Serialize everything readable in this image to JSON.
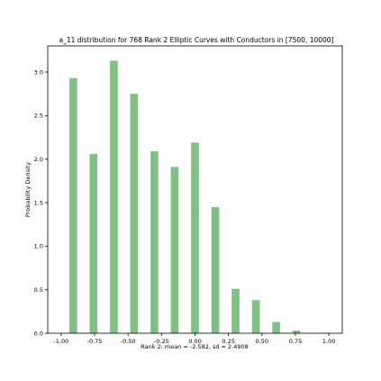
{
  "chart_data": {
    "type": "bar",
    "title": "a_11 distribution for 768 Rank 2 Elliptic Curves with Conductors in [7500, 10000]",
    "xlabel": "Rank 2: mean = -2.582, sd = 2.4908",
    "ylabel": "Probability Density",
    "xlim": [
      -1.1,
      1.1
    ],
    "ylim": [
      0,
      3.3
    ],
    "bar_width": 0.058,
    "bar_color": "#82bf82",
    "x": [
      -0.909,
      -0.758,
      -0.606,
      -0.455,
      -0.303,
      -0.152,
      0.0,
      0.152,
      0.303,
      0.455,
      0.606,
      0.758
    ],
    "values": [
      2.93,
      2.06,
      3.13,
      2.75,
      2.09,
      1.91,
      2.19,
      1.45,
      0.51,
      0.38,
      0.13,
      0.03
    ],
    "xticks": [
      -1.0,
      -0.75,
      -0.5,
      -0.25,
      0.0,
      0.25,
      0.5,
      0.75,
      1.0
    ],
    "xtick_labels": [
      "-1.00",
      "-0.75",
      "-0.50",
      "-0.25",
      "0.00",
      "0.25",
      "0.50",
      "0.75",
      "1.00"
    ],
    "yticks": [
      0.0,
      0.5,
      1.0,
      1.5,
      2.0,
      2.5,
      3.0
    ],
    "ytick_labels": [
      "0.0",
      "0.5",
      "1.0",
      "1.5",
      "2.0",
      "2.5",
      "3.0"
    ],
    "grid": false
  }
}
